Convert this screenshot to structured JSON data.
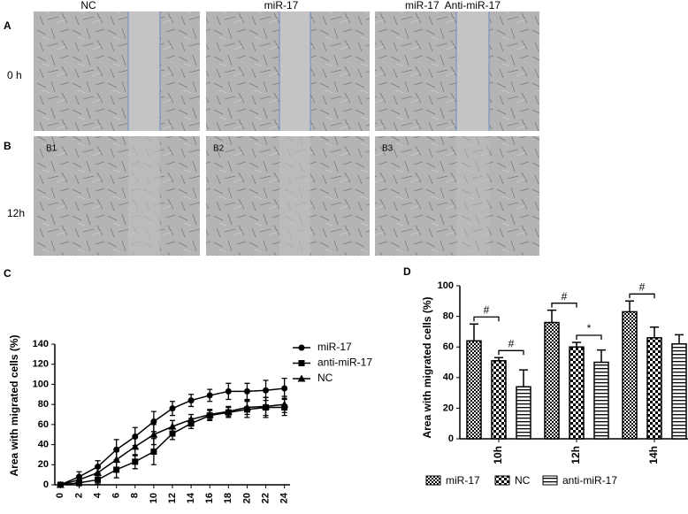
{
  "images": {
    "columns": [
      "NC",
      "miR-17",
      "miR-17  Anti-miR-17"
    ],
    "rows": [
      {
        "panel": "A",
        "time": "0 h"
      },
      {
        "panel": "B",
        "time": "12h",
        "tiles": [
          "B1",
          "B2",
          "B3"
        ]
      }
    ]
  },
  "chart_data": [
    {
      "type": "line",
      "panel": "C",
      "y_label": "Area with migrated cells (%)",
      "x": [
        0,
        2,
        4,
        6,
        8,
        10,
        12,
        14,
        16,
        18,
        20,
        22,
        24
      ],
      "xlim": [
        -0.6,
        24.6
      ],
      "xticks": [
        0,
        2,
        4,
        6,
        8,
        10,
        12,
        14,
        16,
        18,
        20,
        22,
        24
      ],
      "ylim": [
        0,
        140
      ],
      "yticks": [
        0,
        20,
        40,
        60,
        80,
        100,
        120,
        140
      ],
      "grid": false,
      "legend": "right",
      "series": [
        {
          "name": "miR-17",
          "color": "#000000",
          "marker": "circle",
          "values": [
            0,
            8,
            18,
            35,
            48,
            63,
            76,
            84,
            89,
            93,
            93,
            94,
            96
          ],
          "errors": [
            1,
            5,
            6,
            10,
            9,
            10,
            7,
            6,
            6,
            8,
            8,
            10,
            10
          ]
        },
        {
          "name": "anti-miR-17",
          "color": "#000000",
          "marker": "square",
          "values": [
            0,
            2,
            5,
            15,
            23,
            33,
            51,
            61,
            69,
            72,
            75,
            77,
            77
          ],
          "errors": [
            1,
            3,
            4,
            8,
            7,
            13,
            6,
            5,
            5,
            5,
            8,
            10,
            8
          ]
        },
        {
          "name": "NC",
          "color": "#000000",
          "marker": "triangle",
          "values": [
            0,
            5,
            12,
            25,
            38,
            50,
            58,
            65,
            70,
            73,
            77,
            78,
            80
          ],
          "errors": [
            1,
            4,
            5,
            8,
            9,
            10,
            6,
            5,
            5,
            5,
            7,
            9,
            8
          ]
        }
      ]
    },
    {
      "type": "bar",
      "panel": "D",
      "y_label": "Area with migrated cells (%)",
      "categories": [
        "10h",
        "12h",
        "14h"
      ],
      "ylim": [
        0,
        100
      ],
      "yticks": [
        0,
        20,
        40,
        60,
        80,
        100
      ],
      "grid": false,
      "legend": "bottom",
      "series": [
        {
          "name": "miR-17",
          "color": "#000000",
          "fill_pattern": "dense-check",
          "values": [
            64,
            76,
            83
          ],
          "errors": [
            11,
            8,
            7
          ]
        },
        {
          "name": "NC",
          "color": "#000000",
          "fill_pattern": "check",
          "values": [
            51,
            60,
            66
          ],
          "errors": [
            2,
            3,
            7
          ]
        },
        {
          "name": "anti-miR-17",
          "color": "#000000",
          "fill_pattern": "hstripe",
          "values": [
            34,
            50,
            62
          ],
          "errors": [
            11,
            8,
            6
          ]
        }
      ],
      "annotations": [
        {
          "text": "#",
          "category": "10h",
          "series": [
            "miR-17",
            "NC"
          ]
        },
        {
          "text": "#",
          "category": "10h",
          "series": [
            "NC",
            "anti-miR-17"
          ]
        },
        {
          "text": "#",
          "category": "12h",
          "series": [
            "miR-17",
            "NC"
          ]
        },
        {
          "text": "*",
          "category": "12h",
          "series": [
            "NC",
            "anti-miR-17"
          ]
        },
        {
          "text": "#",
          "category": "14h",
          "series": [
            "miR-17",
            "NC"
          ]
        }
      ]
    }
  ]
}
